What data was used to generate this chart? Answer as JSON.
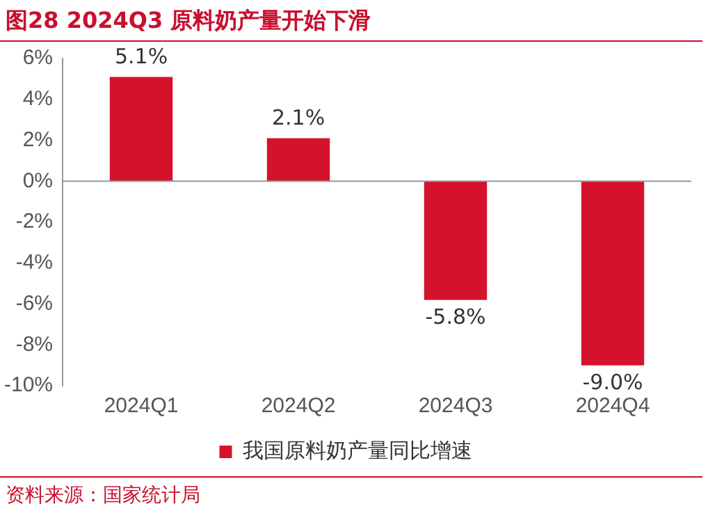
{
  "chart_data": {
    "type": "bar",
    "title": "图28  2024Q3 原料奶产量开始下滑",
    "categories": [
      "2024Q1",
      "2024Q2",
      "2024Q3",
      "2024Q4"
    ],
    "series": [
      {
        "name": "我国原料奶产量同比增速",
        "color": "#d6112b",
        "values": [
          5.1,
          2.1,
          -5.8,
          -9.0
        ],
        "value_labels": [
          "5.1%",
          "2.1%",
          "-5.8%",
          "-9.0%"
        ]
      }
    ],
    "ylim": [
      -10,
      6
    ],
    "yticks": [
      {
        "value": -10,
        "label": "-10%"
      },
      {
        "value": -8,
        "label": "-8%"
      },
      {
        "value": -6,
        "label": "-6%"
      },
      {
        "value": -4,
        "label": "-4%"
      },
      {
        "value": -2,
        "label": "-2%"
      },
      {
        "value": 0,
        "label": "0%"
      },
      {
        "value": 2,
        "label": "2%"
      },
      {
        "value": 4,
        "label": "4%"
      },
      {
        "value": 6,
        "label": "6%"
      }
    ],
    "legend": "bottom",
    "annotations": [
      "资料来源：国家统计局"
    ]
  }
}
